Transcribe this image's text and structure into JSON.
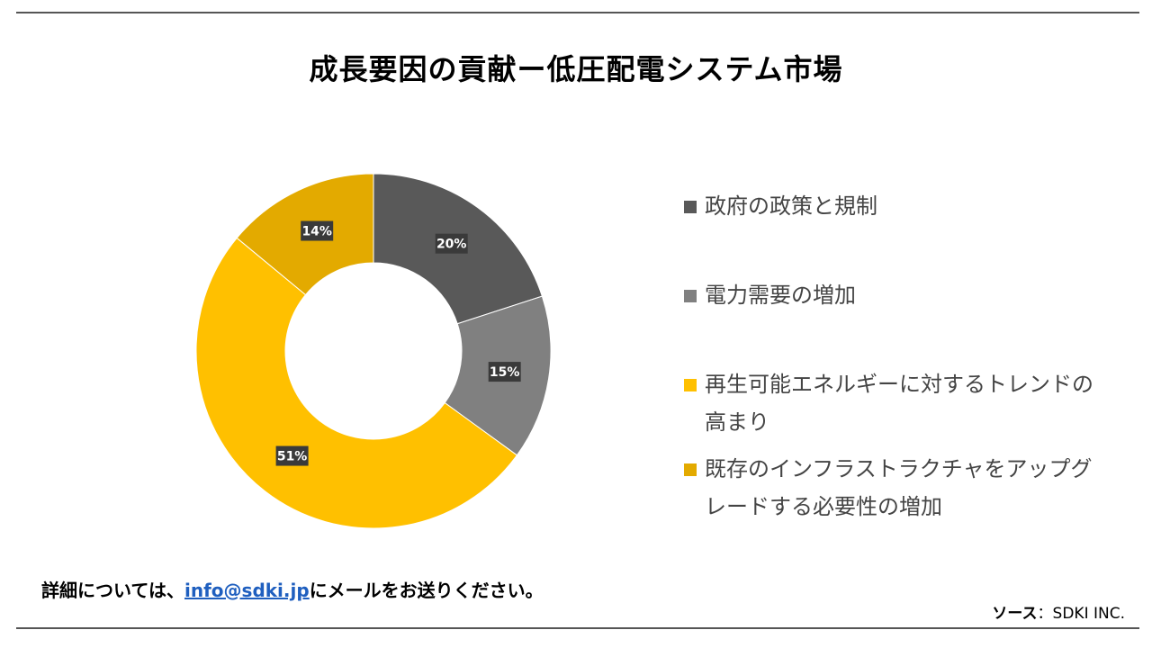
{
  "header": {
    "title": "成長要因の貢献ー低圧配電システム市場"
  },
  "chart_data": {
    "type": "pie",
    "title": "成長要因の貢献ー低圧配電システム市場",
    "donut": true,
    "legend_position": "right",
    "categories": [
      "政府の政策と規制",
      "電力需要の増加",
      "再生可能エネルギーに対するトレンドの高まり",
      "既存のインフラストラクチャをアップグレードする必要性の増加"
    ],
    "values": [
      20,
      15,
      51,
      14
    ],
    "data_labels": [
      "20%",
      "15%",
      "51%",
      "14%"
    ],
    "colors": [
      "#595959",
      "#808080",
      "#ffc000",
      "#e3aa00"
    ]
  },
  "footer": {
    "note_prefix": "詳細については、",
    "email": "info@sdki.jp",
    "note_suffix": "にメールをお送りください。",
    "source_label": "ソース",
    "source_value": "：SDKI INC."
  }
}
